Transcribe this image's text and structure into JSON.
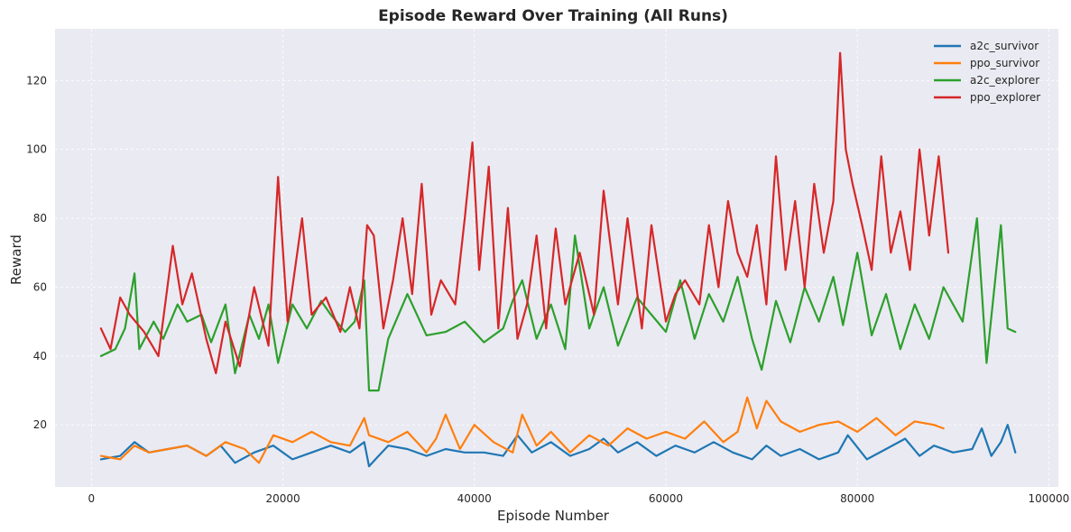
{
  "chart_data": {
    "type": "line",
    "title": "Episode Reward Over Training (All Runs)",
    "xlabel": "Episode Number",
    "ylabel": "Reward",
    "xlim": [
      -3800,
      101000
    ],
    "ylim": [
      2,
      135
    ],
    "xticks": [
      0,
      20000,
      40000,
      60000,
      80000,
      100000
    ],
    "xtick_labels": [
      "0",
      "20000",
      "40000",
      "60000",
      "80000",
      "100000"
    ],
    "yticks": [
      20,
      40,
      60,
      80,
      100,
      120
    ],
    "ytick_labels": [
      "20",
      "40",
      "60",
      "80",
      "100",
      "120"
    ],
    "grid": true,
    "legend_position": "top-right",
    "series": [
      {
        "name": "a2c_survivor",
        "color": "#1f77b4",
        "x": [
          1000,
          3000,
          4500,
          6000,
          8000,
          10000,
          12000,
          13500,
          15000,
          17000,
          19000,
          21000,
          23000,
          25000,
          27000,
          28500,
          29000,
          30000,
          31000,
          33000,
          35000,
          37000,
          39000,
          41000,
          43000,
          44500,
          46000,
          48000,
          50000,
          52000,
          53500,
          55000,
          57000,
          59000,
          61000,
          63000,
          65000,
          67000,
          69000,
          70500,
          72000,
          74000,
          76000,
          78000,
          79000,
          81000,
          83000,
          85000,
          86500,
          88000,
          90000,
          92000,
          93000,
          94000,
          95000,
          95700,
          96500
        ],
        "y": [
          10,
          11,
          15,
          12,
          13,
          14,
          11,
          14,
          9,
          12,
          14,
          10,
          12,
          14,
          12,
          15,
          8,
          11,
          14,
          13,
          11,
          13,
          12,
          12,
          11,
          17,
          12,
          15,
          11,
          13,
          16,
          12,
          15,
          11,
          14,
          12,
          15,
          12,
          10,
          14,
          11,
          13,
          10,
          12,
          17,
          10,
          13,
          16,
          11,
          14,
          12,
          13,
          19,
          11,
          15,
          20,
          12
        ]
      },
      {
        "name": "ppo_survivor",
        "color": "#ff7f0e",
        "x": [
          1000,
          3000,
          4500,
          6000,
          8000,
          10000,
          12000,
          14000,
          16000,
          17500,
          19000,
          21000,
          23000,
          25000,
          27000,
          28500,
          29000,
          31000,
          33000,
          35000,
          36000,
          37000,
          38500,
          40000,
          42000,
          44000,
          45000,
          46500,
          48000,
          50000,
          52000,
          54000,
          56000,
          58000,
          60000,
          62000,
          64000,
          66000,
          67500,
          68500,
          69500,
          70500,
          72000,
          74000,
          76000,
          78000,
          80000,
          82000,
          84000,
          86000,
          88000,
          89000
        ],
        "y": [
          11,
          10,
          14,
          12,
          13,
          14,
          11,
          15,
          13,
          9,
          17,
          15,
          18,
          15,
          14,
          22,
          17,
          15,
          18,
          12,
          16,
          23,
          13,
          20,
          15,
          12,
          23,
          14,
          18,
          12,
          17,
          14,
          19,
          16,
          18,
          16,
          21,
          15,
          18,
          28,
          19,
          27,
          21,
          18,
          20,
          21,
          18,
          22,
          17,
          21,
          20,
          19
        ]
      },
      {
        "name": "a2c_explorer",
        "color": "#2ca02c",
        "x": [
          1000,
          2500,
          3500,
          4500,
          5000,
          6500,
          7500,
          9000,
          10000,
          11500,
          12500,
          14000,
          15000,
          16500,
          17500,
          18500,
          19500,
          21000,
          22500,
          24000,
          25000,
          26500,
          27500,
          28500,
          29000,
          30000,
          31000,
          33000,
          35000,
          37000,
          39000,
          41000,
          43000,
          44000,
          45000,
          46500,
          48000,
          49500,
          50500,
          52000,
          53500,
          55000,
          57000,
          58500,
          60000,
          61500,
          63000,
          64500,
          66000,
          67500,
          69000,
          70000,
          71500,
          73000,
          74500,
          76000,
          77500,
          78500,
          80000,
          81500,
          83000,
          84500,
          86000,
          87500,
          89000,
          91000,
          92500,
          93500,
          95000,
          95700,
          96500
        ],
        "y": [
          40,
          42,
          48,
          64,
          42,
          50,
          45,
          55,
          50,
          52,
          44,
          55,
          35,
          52,
          45,
          55,
          38,
          55,
          48,
          56,
          52,
          47,
          50,
          62,
          30,
          30,
          45,
          58,
          46,
          47,
          50,
          44,
          48,
          56,
          62,
          45,
          55,
          42,
          75,
          48,
          60,
          43,
          57,
          52,
          47,
          62,
          45,
          58,
          50,
          63,
          45,
          36,
          56,
          44,
          60,
          50,
          63,
          49,
          70,
          46,
          58,
          42,
          55,
          45,
          60,
          50,
          80,
          38,
          78,
          48,
          47
        ]
      },
      {
        "name": "ppo_explorer",
        "color": "#d62728",
        "x": [
          1000,
          2000,
          3000,
          4000,
          5500,
          7000,
          8500,
          9500,
          10500,
          12000,
          13000,
          14000,
          15500,
          17000,
          18500,
          19500,
          20500,
          22000,
          23000,
          24500,
          26000,
          27000,
          28000,
          28800,
          29500,
          30500,
          31500,
          32500,
          33500,
          34500,
          35500,
          36500,
          38000,
          39000,
          39800,
          40500,
          41500,
          42500,
          43500,
          44500,
          45500,
          46500,
          47500,
          48500,
          49500,
          51000,
          52500,
          53500,
          55000,
          56000,
          57500,
          58500,
          60000,
          61000,
          62000,
          63500,
          64500,
          65500,
          66500,
          67500,
          68500,
          69500,
          70500,
          71500,
          72500,
          73500,
          74500,
          75500,
          76500,
          77500,
          78200,
          78800,
          79500,
          80500,
          81500,
          82500,
          83500,
          84500,
          85500,
          86500,
          87500,
          88500,
          89500
        ],
        "y": [
          48,
          42,
          57,
          52,
          47,
          40,
          72,
          55,
          64,
          45,
          35,
          50,
          37,
          60,
          43,
          92,
          50,
          80,
          52,
          57,
          47,
          60,
          48,
          78,
          75,
          48,
          62,
          80,
          58,
          90,
          52,
          62,
          55,
          80,
          102,
          65,
          95,
          48,
          83,
          45,
          55,
          75,
          48,
          77,
          55,
          70,
          52,
          88,
          55,
          80,
          48,
          78,
          50,
          58,
          62,
          55,
          78,
          60,
          85,
          70,
          63,
          78,
          55,
          98,
          65,
          85,
          60,
          90,
          70,
          85,
          128,
          100,
          90,
          78,
          65,
          98,
          70,
          82,
          65,
          100,
          75,
          98,
          70
        ]
      }
    ]
  }
}
